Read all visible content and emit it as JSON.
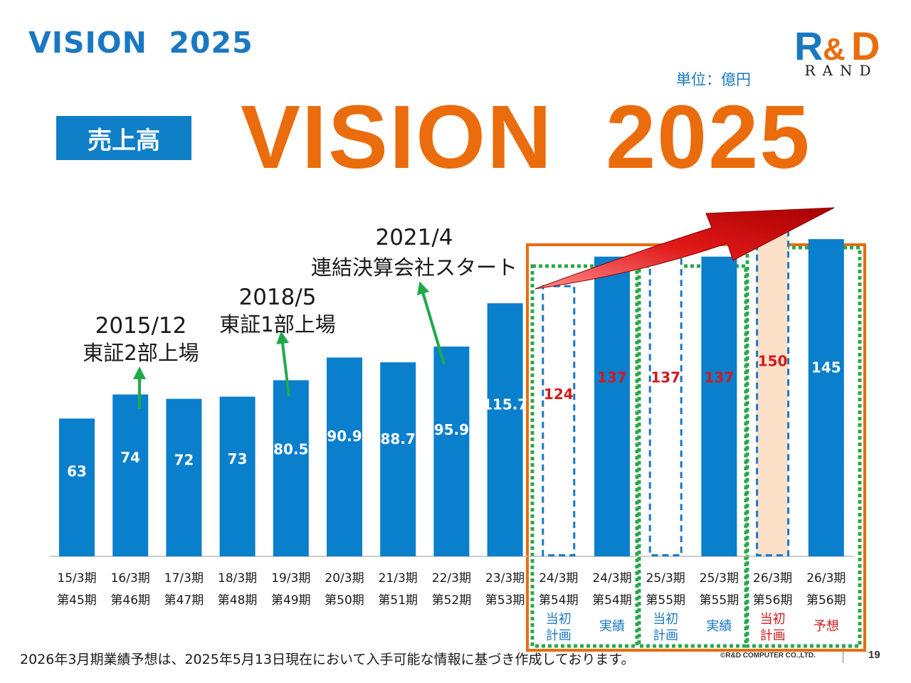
{
  "header": {
    "heading": "VISION  2025",
    "unit": "単位：億円",
    "badge": "売上高",
    "vision_title": "VISION  2025"
  },
  "logo": {
    "mark": "R&D",
    "word": "RAND",
    "colors": {
      "r": "#1a78c2",
      "amp": "#ea6c0c",
      "d": "#ea6c0c"
    }
  },
  "colors": {
    "bar": "#0a7fcc",
    "bar_label": "#ffffff",
    "plan_label": "#d11a1a",
    "plan_border": "#1a78c2",
    "forecast_plan_fill": "#fde0c8",
    "frame_orange": "#ea6c0c",
    "frame_green": "#2aa84a",
    "arrow_red": "#e01818",
    "milestone_arrow": "#1faa4a",
    "axis_text": "#1a1a1a",
    "sublabel_blue": "#1a78c2"
  },
  "milestones": [
    {
      "date": "2015/12",
      "text": "東証2部上場"
    },
    {
      "date": "2018/5",
      "text": "東証1部上場"
    },
    {
      "date": "2021/4",
      "text": "連結決算会社スタート"
    }
  ],
  "chart_data": {
    "type": "bar",
    "title": "",
    "xlabel": "",
    "ylabel": "",
    "ylim": [
      0,
      160
    ],
    "categories": [
      {
        "period": "15/3期",
        "term": "第45期",
        "note": ""
      },
      {
        "period": "16/3期",
        "term": "第46期",
        "note": ""
      },
      {
        "period": "17/3期",
        "term": "第47期",
        "note": ""
      },
      {
        "period": "18/3期",
        "term": "第48期",
        "note": ""
      },
      {
        "period": "19/3期",
        "term": "第49期",
        "note": ""
      },
      {
        "period": "20/3期",
        "term": "第50期",
        "note": ""
      },
      {
        "period": "21/3期",
        "term": "第51期",
        "note": ""
      },
      {
        "period": "22/3期",
        "term": "第52期",
        "note": ""
      },
      {
        "period": "23/3期",
        "term": "第53期",
        "note": ""
      },
      {
        "period": "24/3期",
        "term": "第54期",
        "note": "当初\n計画"
      },
      {
        "period": "24/3期",
        "term": "第54期",
        "note": "実績"
      },
      {
        "period": "25/3期",
        "term": "第55期",
        "note": "当初\n計画"
      },
      {
        "period": "25/3期",
        "term": "第55期",
        "note": "実績"
      },
      {
        "period": "26/3期",
        "term": "第56期",
        "note": "当初\n計画"
      },
      {
        "period": "26/3期",
        "term": "第56期",
        "note": "予想"
      }
    ],
    "values": [
      63,
      74,
      72,
      73,
      80.5,
      90.9,
      88.7,
      95.9,
      115.7,
      124,
      137,
      137,
      137,
      150,
      145
    ],
    "value_labels": [
      "63",
      "74",
      "72",
      "73",
      "80.5",
      "90.9",
      "88.7",
      "95.9",
      "115.7",
      "124",
      "137",
      "137",
      "137",
      "150",
      "145"
    ],
    "kinds": [
      "actual",
      "actual",
      "actual",
      "actual",
      "actual",
      "actual",
      "actual",
      "actual",
      "actual",
      "plan",
      "actual",
      "plan",
      "actual",
      "forecast-plan",
      "forecast"
    ]
  },
  "footer": {
    "note": "2026年3月期業績予想は、2025年5月13日現在において入手可能な情報に基づき作成しております。",
    "copyright": "©R&D COMPUTER CO.,LTD.",
    "page": "19"
  }
}
